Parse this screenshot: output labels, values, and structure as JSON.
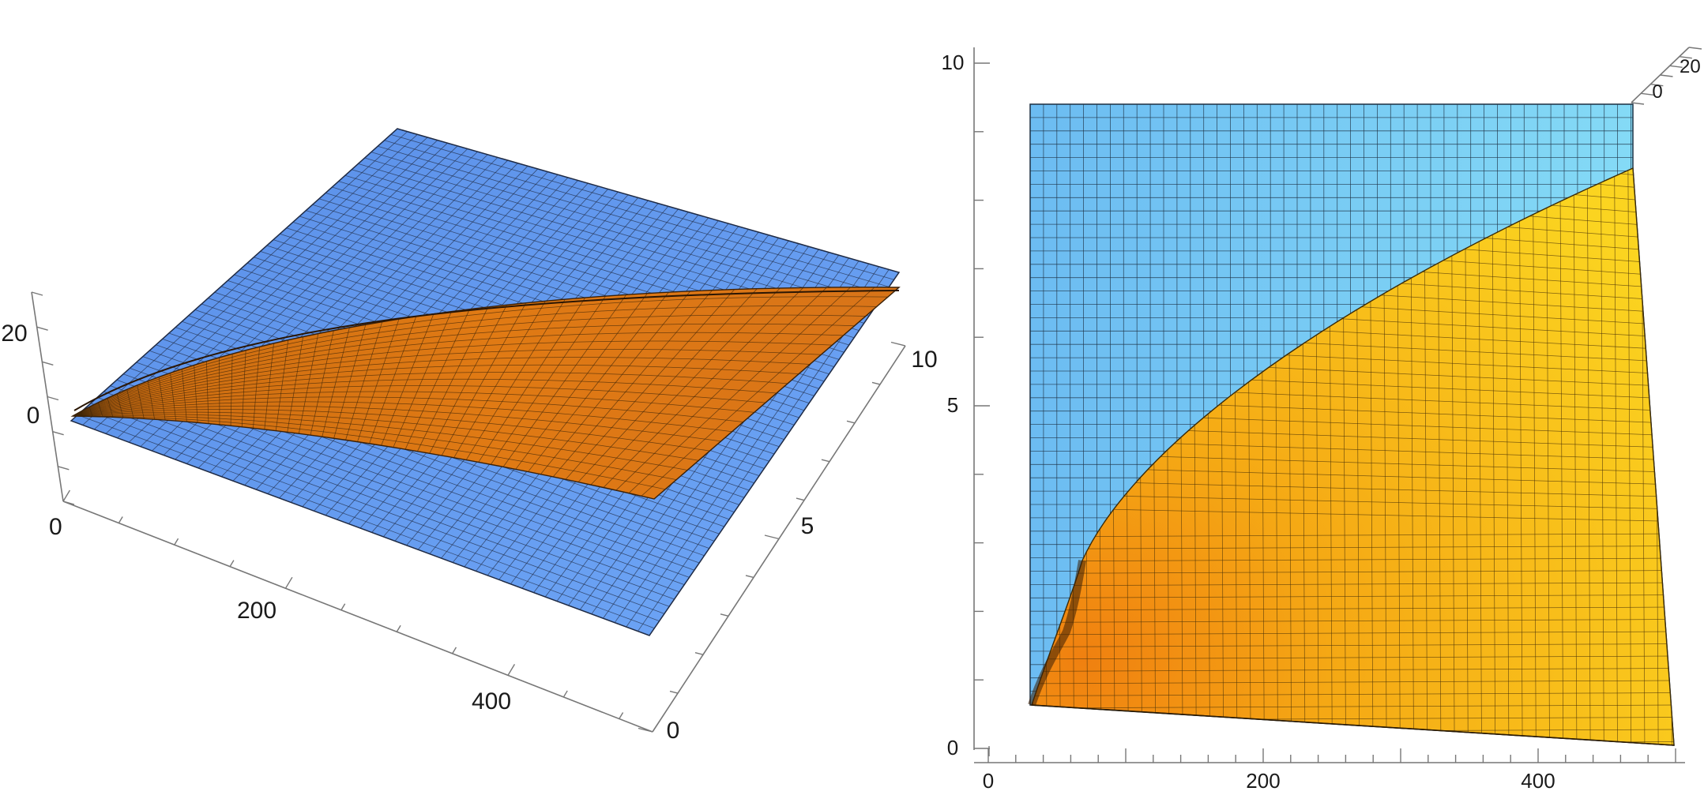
{
  "chart_data": [
    {
      "type": "surface3d",
      "view": "oblique",
      "surfaces": [
        {
          "color": "#6aa0f0",
          "description_shown": "flat plane"
        },
        {
          "color": "#e07818",
          "description_shown": "curved surface rising along x"
        }
      ],
      "x_ticks": [
        "0",
        "200",
        "400"
      ],
      "y_ticks": [
        "0",
        "5",
        "10"
      ],
      "z_ticks": [
        "0",
        "20"
      ],
      "xlim": [
        0,
        500
      ],
      "ylim": [
        0,
        10
      ],
      "mesh": true
    },
    {
      "type": "surface3d",
      "view": "top-down",
      "surfaces": [
        {
          "color": "#7cc6f4"
        },
        {
          "color": "#f7be1c"
        }
      ],
      "x_ticks": [
        "0",
        "200",
        "400"
      ],
      "y_ticks": [
        "0",
        "5",
        "10"
      ],
      "z_ticks": [
        "0",
        "20"
      ],
      "xlim": [
        0,
        500
      ],
      "ylim": [
        0,
        10
      ],
      "mesh": true
    }
  ]
}
